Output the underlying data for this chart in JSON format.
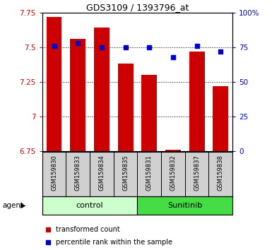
{
  "title": "GDS3109 / 1393796_at",
  "samples": [
    "GSM159830",
    "GSM159833",
    "GSM159834",
    "GSM159835",
    "GSM159831",
    "GSM159832",
    "GSM159837",
    "GSM159838"
  ],
  "groups": [
    "control",
    "control",
    "control",
    "control",
    "Sunitinib",
    "Sunitinib",
    "Sunitinib",
    "Sunitinib"
  ],
  "transformed_count": [
    7.72,
    7.56,
    7.64,
    7.38,
    7.3,
    6.76,
    7.47,
    7.22
  ],
  "percentile_rank": [
    76,
    78,
    75,
    75,
    75,
    68,
    76,
    72
  ],
  "ylim_left": [
    6.75,
    7.75
  ],
  "ylim_right": [
    0,
    100
  ],
  "yticks_left": [
    6.75,
    7.0,
    7.25,
    7.5,
    7.75
  ],
  "yticks_right": [
    0,
    25,
    50,
    75,
    100
  ],
  "ytick_labels_left": [
    "6.75",
    "7",
    "7.25",
    "7.5",
    "7.75"
  ],
  "ytick_labels_right": [
    "0",
    "25",
    "50",
    "75",
    "100%"
  ],
  "bar_color": "#cc0000",
  "dot_color": "#0000cc",
  "control_color": "#ccffcc",
  "sunitinib_color": "#44dd44",
  "bar_width": 0.65,
  "tick_label_color_left": "#cc0000",
  "tick_label_color_right": "#0000cc",
  "group_divider": 4
}
